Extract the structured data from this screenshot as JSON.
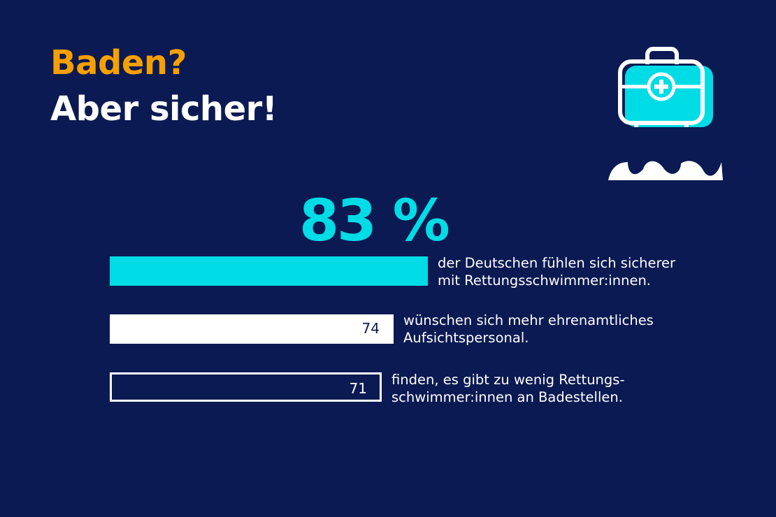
{
  "title": {
    "line1": "Baden?",
    "line2": "Aber sicher!"
  },
  "colors": {
    "background": "#0b1a52",
    "accent": "#00dce6",
    "title_orange": "#f5a000",
    "white": "#ffffff"
  },
  "icon": "first-aid-kit-over-water-icon",
  "chart_data": {
    "type": "bar",
    "orientation": "horizontal",
    "unit": "%",
    "headline_value": "83 %",
    "bars": [
      {
        "value": 83,
        "label": "",
        "style": "filled-cyan",
        "description": [
          "der Deutschen fühlen sich sicherer",
          "mit Rettungsschwimmer:innen."
        ]
      },
      {
        "value": 74,
        "label": "74",
        "style": "filled-white",
        "description": [
          "wünschen sich mehr ehrenamtliches",
          "Aufsichtspersonal."
        ]
      },
      {
        "value": 71,
        "label": "71",
        "style": "outline-white",
        "description": [
          "finden, es gibt zu wenig Rettungs-",
          "schwimmer:innen an Badestellen."
        ]
      }
    ]
  }
}
